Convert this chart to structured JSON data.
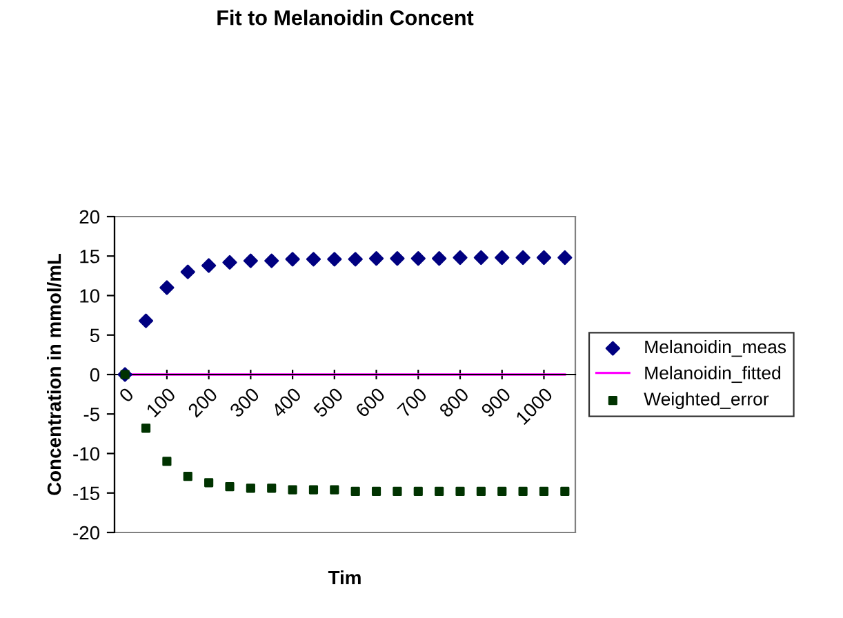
{
  "chart_data": {
    "type": "scatter",
    "title": "Fit to Melanoidin Concent",
    "xlabel": "Tim",
    "ylabel": "Concentration in mmol/mL",
    "categories": [
      "0",
      null,
      "100",
      null,
      "200",
      null,
      "300",
      null,
      "400",
      null,
      "500",
      null,
      "600",
      null,
      "700",
      null,
      "800",
      null,
      "900",
      null,
      "1000",
      null
    ],
    "series": [
      {
        "name": "Melanoidin_meas",
        "marker": "diamond",
        "color": "#000080",
        "values": [
          0,
          6.8,
          11.0,
          13.0,
          13.8,
          14.2,
          14.4,
          14.4,
          14.6,
          14.6,
          14.6,
          14.6,
          14.7,
          14.7,
          14.7,
          14.7,
          14.8,
          14.8,
          14.8,
          14.8,
          14.8,
          14.8
        ]
      },
      {
        "name": "Melanoidin_fitted",
        "type": "line",
        "marker": "none",
        "line_style": "solid",
        "color": "#ff00ff",
        "values": [
          0,
          0,
          0,
          0,
          0,
          0,
          0,
          0,
          0,
          0,
          0,
          0,
          0,
          0,
          0,
          0,
          0,
          0,
          0,
          0,
          0,
          0
        ]
      },
      {
        "name": "Weighted_error",
        "marker": "square",
        "color": "#003300",
        "values": [
          0,
          -6.8,
          -11.0,
          -12.9,
          -13.7,
          -14.2,
          -14.4,
          -14.4,
          -14.6,
          -14.6,
          -14.6,
          -14.8,
          -14.8,
          -14.8,
          -14.8,
          -14.8,
          -14.8,
          -14.8,
          -14.8,
          -14.8,
          -14.8,
          -14.8
        ]
      }
    ],
    "ylim": [
      -20,
      20
    ],
    "yticks": [
      -20,
      -15,
      -10,
      -5,
      0,
      5,
      10,
      15,
      20
    ],
    "grid": false,
    "legend": "right"
  }
}
